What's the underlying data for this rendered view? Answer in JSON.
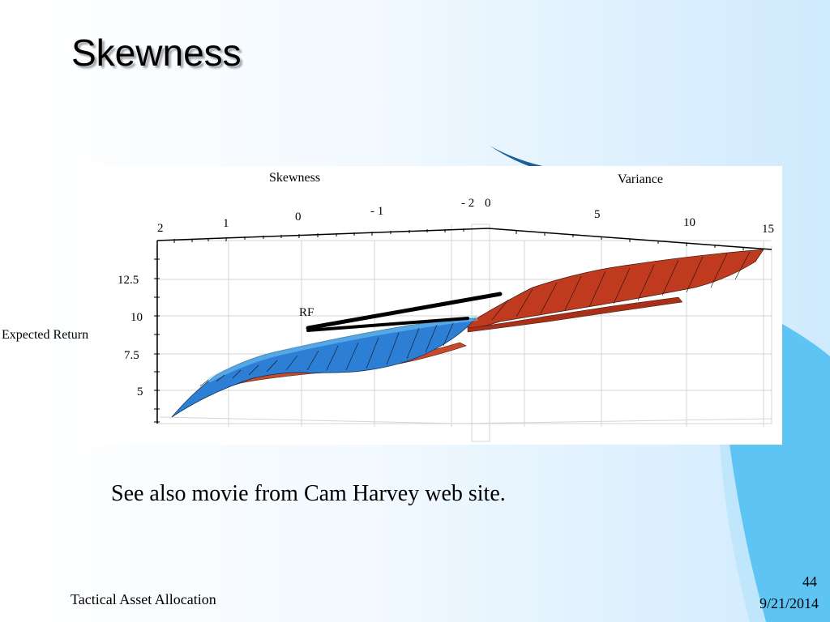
{
  "slide": {
    "title": "Skewness",
    "caption": "See also movie from Cam Harvey web site.",
    "footer_left": "Tactical Asset Allocation",
    "slide_number": "44",
    "date": "9/21/2014"
  },
  "theme": {
    "accent_blue": "#2d7fd6",
    "accent_red": "#c84a2a",
    "decor_blue": "#5ec4f4",
    "decor_dark": "#1a5f9a"
  },
  "figure": {
    "skewness_axis": {
      "label": "Skewness",
      "ticks": [
        "2",
        "1",
        "0",
        "- 1",
        "- 2"
      ]
    },
    "variance_axis": {
      "label": "Variance",
      "ticks": [
        "0",
        "5",
        "10",
        "15"
      ]
    },
    "return_axis": {
      "label": "Expected Return",
      "ticks": [
        "12.5",
        "10",
        "7.5",
        "5"
      ]
    },
    "annotation": "RF"
  }
}
